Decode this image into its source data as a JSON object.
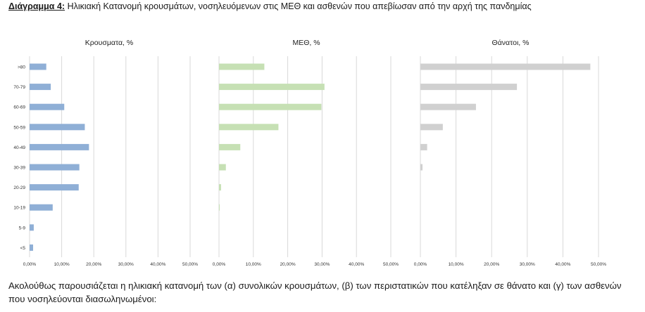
{
  "heading": {
    "label": "Διάγραμμα 4:",
    "text": "Ηλικιακή Κατανομή κρουσμάτων, νοσηλευόμενων στις ΜΕΘ και ασθενών που απεβίωσαν από την αρχή της πανδημίας"
  },
  "paragraph": "Ακολούθως παρουσιάζεται η ηλικιακή κατανομή των (α) συνολικών κρουσμάτων, (β) των περιστατικών που κατέληξαν σε θάνατο και (γ) των ασθενών που νοσηλεύονται διασωληνωμένοι:",
  "chart_data": [
    {
      "type": "bar",
      "orientation": "horizontal",
      "title": "Κρουσματα, %",
      "color": "#8FAFD6",
      "categories": [
        ">80",
        "70-79",
        "60-69",
        "50-59",
        "40-49",
        "30-39",
        "20-29",
        "10-19",
        "5-9",
        "<5"
      ],
      "values": [
        5.2,
        6.6,
        10.8,
        17.2,
        18.5,
        15.5,
        15.3,
        7.2,
        1.3,
        1.1
      ],
      "xlim": [
        0,
        50
      ],
      "xticks": [
        "0,00%",
        "10,00%",
        "20,00%",
        "30,00%",
        "40,00%",
        "50,00%"
      ],
      "grid": true
    },
    {
      "type": "bar",
      "orientation": "horizontal",
      "title": "ΜΕΘ, %",
      "color": "#C6E0B4",
      "categories": [
        ">80",
        "70-79",
        "60-69",
        "50-59",
        "40-49",
        "30-39",
        "20-29",
        "10-19",
        "5-9",
        "<5"
      ],
      "values": [
        13.2,
        30.7,
        29.8,
        17.3,
        6.2,
        2.0,
        0.6,
        0.2,
        0,
        0
      ],
      "xlim": [
        0,
        50
      ],
      "xticks": [
        "0,00%",
        "10,00%",
        "20,00%",
        "30,00%",
        "40,00%",
        "50,00%"
      ],
      "grid": true
    },
    {
      "type": "bar",
      "orientation": "horizontal",
      "title": "Θάνατοι, %",
      "color": "#D0D0D0",
      "categories": [
        ">80",
        "70-79",
        "60-69",
        "50-59",
        "40-49",
        "30-39",
        "20-29",
        "10-19",
        "5-9",
        "<5"
      ],
      "values": [
        47.7,
        27.1,
        15.6,
        6.3,
        1.9,
        0.6,
        0,
        0,
        0,
        0
      ],
      "xlim": [
        0,
        50
      ],
      "xticks": [
        "0,00%",
        "10,00%",
        "20,00%",
        "30,00%",
        "40,00%",
        "50,00%"
      ],
      "grid": true
    }
  ]
}
